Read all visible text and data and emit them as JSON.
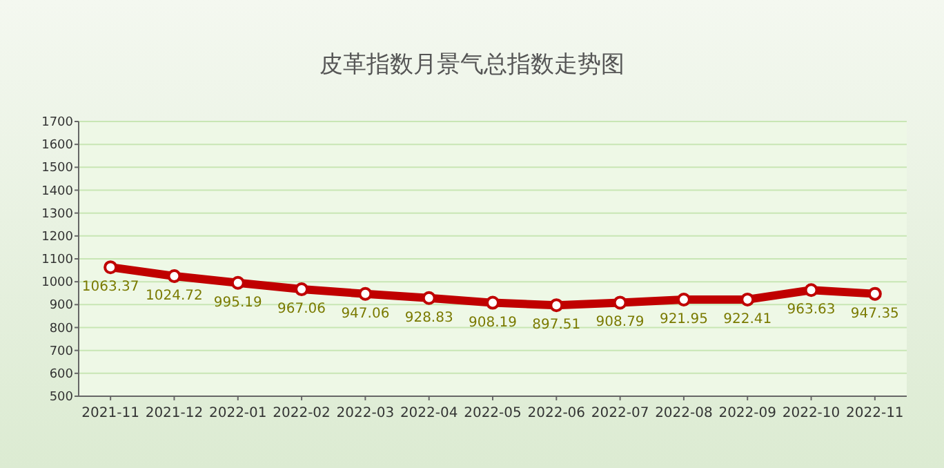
{
  "chart_data": {
    "type": "line",
    "title": "皮革指数月景气总指数走势图",
    "categories": [
      "2021-11",
      "2021-12",
      "2022-01",
      "2022-02",
      "2022-03",
      "2022-04",
      "2022-05",
      "2022-06",
      "2022-07",
      "2022-08",
      "2022-09",
      "2022-10",
      "2022-11"
    ],
    "series": [
      {
        "color": "#c00000",
        "values": [
          1063.37,
          1024.72,
          995.19,
          967.06,
          947.06,
          928.83,
          908.19,
          897.51,
          908.79,
          921.95,
          922.41,
          963.63,
          947.35
        ]
      }
    ],
    "ylim": [
      500,
      1700
    ],
    "yticks": [
      500,
      600,
      700,
      800,
      900,
      1000,
      1100,
      1200,
      1300,
      1400,
      1500,
      1600,
      1700
    ],
    "grid": "y",
    "marker": "circle",
    "line_style": "solid",
    "data_labels": true
  }
}
